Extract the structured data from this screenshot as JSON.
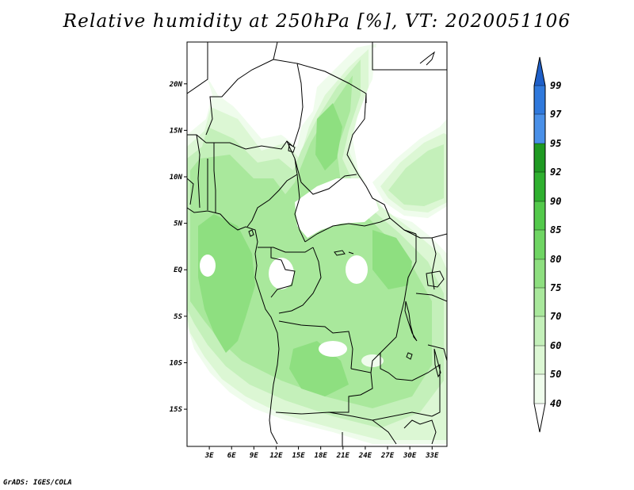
{
  "title": "Relative humidity at 250hPa [%], VT: 2020051106",
  "footer": "GrADS: IGES/COLA",
  "map": {
    "lon_range": [
      0,
      35
    ],
    "lat_range": [
      -19,
      24.5
    ],
    "lat_ticks": [
      {
        "value": 20,
        "label": "20N"
      },
      {
        "value": 15,
        "label": "15N"
      },
      {
        "value": 10,
        "label": "10N"
      },
      {
        "value": 5,
        "label": "5N"
      },
      {
        "value": 0,
        "label": "EQ"
      },
      {
        "value": -5,
        "label": "5S"
      },
      {
        "value": -10,
        "label": "10S"
      },
      {
        "value": -15,
        "label": "15S"
      }
    ],
    "lon_ticks": [
      {
        "value": 3,
        "label": "3E"
      },
      {
        "value": 6,
        "label": "6E"
      },
      {
        "value": 9,
        "label": "9E"
      },
      {
        "value": 12,
        "label": "12E"
      },
      {
        "value": 15,
        "label": "15E"
      },
      {
        "value": 18,
        "label": "18E"
      },
      {
        "value": 21,
        "label": "21E"
      },
      {
        "value": 24,
        "label": "24E"
      },
      {
        "value": 27,
        "label": "27E"
      },
      {
        "value": 30,
        "label": "30E"
      },
      {
        "value": 33,
        "label": "33E"
      }
    ]
  },
  "colorbar": {
    "labels": [
      "99",
      "97",
      "95",
      "92",
      "90",
      "85",
      "80",
      "75",
      "70",
      "60",
      "50",
      "40"
    ],
    "colors": {
      "band_40_50": "#effcec",
      "band_50_60": "#dcf7d4",
      "band_60_70": "#c4f0ba",
      "band_70_75": "#a9e89c",
      "band_75_80": "#8edf80",
      "band_80_85": "#6fd563",
      "band_85_90": "#53c94b",
      "band_90_92": "#2fb02f",
      "band_92_95": "#1f9a22",
      "band_95_97": "#4a90e8",
      "band_97_99": "#3079dc",
      "band_above_99": "#1e5fc8"
    }
  }
}
